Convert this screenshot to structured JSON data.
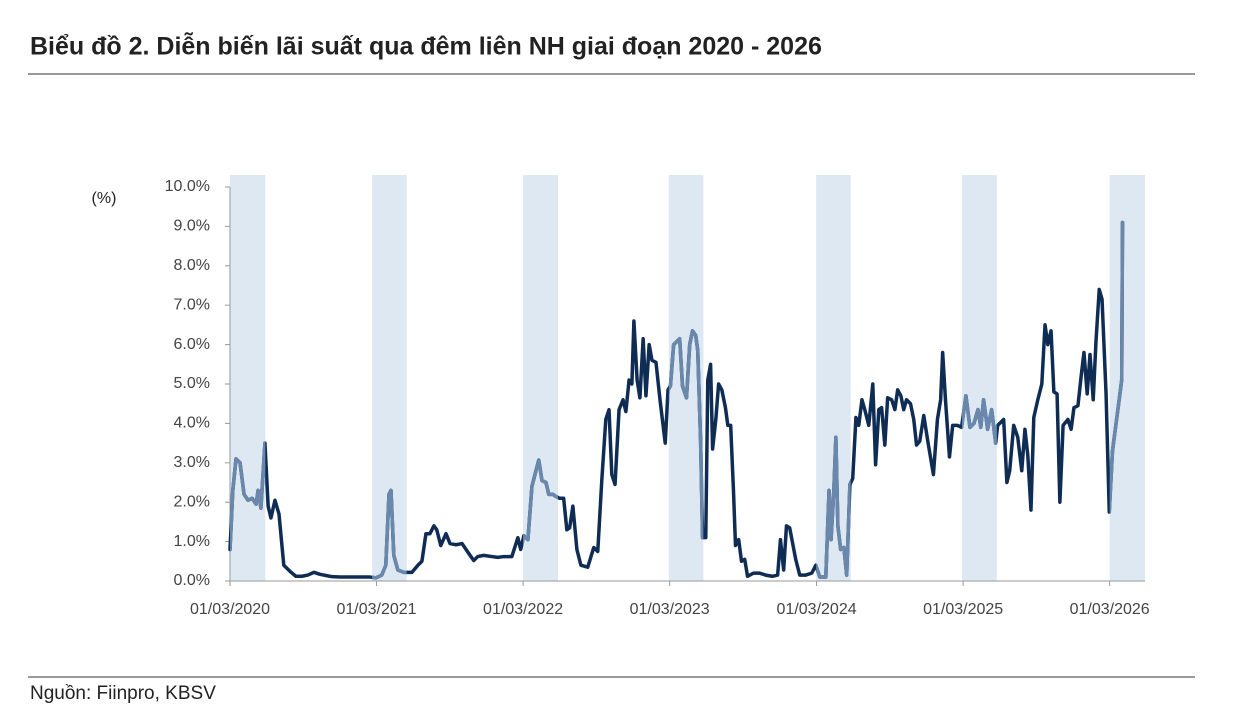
{
  "chart_data": {
    "type": "line",
    "title": "Biểu đồ 2. Diễn biến lãi suất qua đêm liên NH giai đoạn 2020 - 2026",
    "y_label": "(%)",
    "source": "Nguồn: Fiinpro, KBSV",
    "color": "#0f2c55",
    "highlight_color": "#6a88ab",
    "band_color": "#dde8f3",
    "xlim": [
      "2020-03-01",
      "2026-05-28"
    ],
    "xticks": [
      {
        "value": "2020-03-01",
        "label": "01/03/2020"
      },
      {
        "value": "2021-03-01",
        "label": "01/03/2021"
      },
      {
        "value": "2022-03-01",
        "label": "01/03/2022"
      },
      {
        "value": "2023-03-01",
        "label": "01/03/2023"
      },
      {
        "value": "2024-03-01",
        "label": "01/03/2024"
      },
      {
        "value": "2025-03-01",
        "label": "01/03/2025"
      },
      {
        "value": "2026-03-01",
        "label": "01/03/2026"
      }
    ],
    "ylim": [
      0,
      10
    ],
    "yticks": [
      {
        "value": 0,
        "label": "0.0%"
      },
      {
        "value": 1,
        "label": "1.0%"
      },
      {
        "value": 2,
        "label": "2.0%"
      },
      {
        "value": 3,
        "label": "3.0%"
      },
      {
        "value": 4,
        "label": "4.0%"
      },
      {
        "value": 5,
        "label": "5.0%"
      },
      {
        "value": 6,
        "label": "6.0%"
      },
      {
        "value": 7,
        "label": "7.0%"
      },
      {
        "value": 8,
        "label": "8.0%"
      },
      {
        "value": 9,
        "label": "9.0%"
      },
      {
        "value": 10,
        "label": "10.0%"
      }
    ],
    "shaded_periods": [
      {
        "start": "2020-03-01",
        "end": "2020-05-28"
      },
      {
        "start": "2021-02-18",
        "end": "2021-05-15"
      },
      {
        "start": "2022-03-01",
        "end": "2022-05-27"
      },
      {
        "start": "2023-02-27",
        "end": "2023-05-24"
      },
      {
        "start": "2024-02-29",
        "end": "2024-05-25"
      },
      {
        "start": "2025-02-26",
        "end": "2025-05-24"
      },
      {
        "start": "2026-03-01",
        "end": "2026-05-28"
      }
    ],
    "x": [
      "2020-03-01",
      "2020-03-08",
      "2020-03-16",
      "2020-03-26",
      "2020-04-05",
      "2020-04-15",
      "2020-04-25",
      "2020-05-05",
      "2020-05-10",
      "2020-05-17",
      "2020-05-27",
      "2020-06-04",
      "2020-06-11",
      "2020-06-21",
      "2020-07-01",
      "2020-07-13",
      "2020-07-28",
      "2020-08-12",
      "2020-08-27",
      "2020-09-11",
      "2020-09-26",
      "2020-10-11",
      "2020-10-26",
      "2020-11-10",
      "2020-11-30",
      "2020-12-25",
      "2021-01-19",
      "2021-02-13",
      "2021-02-28",
      "2021-03-14",
      "2021-03-24",
      "2021-04-01",
      "2021-04-06",
      "2021-04-13",
      "2021-04-23",
      "2021-05-08",
      "2021-05-28",
      "2021-06-12",
      "2021-06-22",
      "2021-07-02",
      "2021-07-12",
      "2021-07-22",
      "2021-07-29",
      "2021-08-08",
      "2021-08-21",
      "2021-08-31",
      "2021-09-15",
      "2021-09-30",
      "2021-10-10",
      "2021-10-20",
      "2021-10-29",
      "2021-11-08",
      "2021-11-23",
      "2021-12-13",
      "2021-12-28",
      "2022-01-12",
      "2022-02-01",
      "2022-02-16",
      "2022-02-23",
      "2022-03-03",
      "2022-03-13",
      "2022-03-23",
      "2022-04-02",
      "2022-04-09",
      "2022-04-17",
      "2022-04-27",
      "2022-05-04",
      "2022-05-14",
      "2022-05-21",
      "2022-05-31",
      "2022-06-10",
      "2022-06-18",
      "2022-06-25",
      "2022-07-03",
      "2022-07-13",
      "2022-07-23",
      "2022-08-09",
      "2022-08-24",
      "2022-09-03",
      "2022-09-13",
      "2022-09-23",
      "2022-10-01",
      "2022-10-08",
      "2022-10-16",
      "2022-10-26",
      "2022-11-05",
      "2022-11-12",
      "2022-11-20",
      "2022-11-27",
      "2022-12-02",
      "2022-12-10",
      "2022-12-17",
      "2022-12-25",
      "2023-01-01",
      "2023-01-09",
      "2023-01-16",
      "2023-01-26",
      "2023-02-05",
      "2023-02-18",
      "2023-02-25",
      "2023-03-03",
      "2023-03-11",
      "2023-03-18",
      "2023-03-26",
      "2023-04-02",
      "2023-04-12",
      "2023-04-20",
      "2023-04-27",
      "2023-05-05",
      "2023-05-10",
      "2023-05-17",
      "2023-05-22",
      "2023-05-30",
      "2023-06-04",
      "2023-06-11",
      "2023-06-16",
      "2023-06-24",
      "2023-07-01",
      "2023-07-09",
      "2023-07-18",
      "2023-07-24",
      "2023-07-31",
      "2023-08-07",
      "2023-08-12",
      "2023-08-20",
      "2023-08-27",
      "2023-09-04",
      "2023-09-11",
      "2023-09-26",
      "2023-10-11",
      "2023-10-26",
      "2023-11-12",
      "2023-11-25",
      "2023-12-02",
      "2023-12-10",
      "2023-12-17",
      "2023-12-25",
      "2024-01-09",
      "2024-01-19",
      "2024-02-03",
      "2024-02-18",
      "2024-02-28",
      "2024-03-09",
      "2024-03-24",
      "2024-04-01",
      "2024-04-06",
      "2024-04-13",
      "2024-04-18",
      "2024-04-23",
      "2024-04-30",
      "2024-05-08",
      "2024-05-15",
      "2024-05-23",
      "2024-05-30",
      "2024-06-07",
      "2024-06-14",
      "2024-06-22",
      "2024-06-29",
      "2024-07-09",
      "2024-07-19",
      "2024-07-26",
      "2024-08-03",
      "2024-08-10",
      "2024-08-18",
      "2024-08-25",
      "2024-09-04",
      "2024-09-12",
      "2024-09-19",
      "2024-09-27",
      "2024-10-04",
      "2024-10-11",
      "2024-10-21",
      "2024-10-29",
      "2024-11-05",
      "2024-11-13",
      "2024-11-23",
      "2024-12-03",
      "2024-12-17",
      "2024-12-27",
      "2025-01-04",
      "2025-01-09",
      "2025-01-16",
      "2025-01-26",
      "2025-02-03",
      "2025-02-15",
      "2025-02-25",
      "2025-03-08",
      "2025-03-18",
      "2025-03-28",
      "2025-04-07",
      "2025-04-14",
      "2025-04-21",
      "2025-05-01",
      "2025-05-11",
      "2025-05-21",
      "2025-05-26",
      "2025-06-10",
      "2025-06-18",
      "2025-06-25",
      "2025-07-05",
      "2025-07-15",
      "2025-07-25",
      "2025-08-02",
      "2025-08-09",
      "2025-08-17",
      "2025-08-24",
      "2025-09-03",
      "2025-09-13",
      "2025-09-21",
      "2025-09-28",
      "2025-10-06",
      "2025-10-13",
      "2025-10-21",
      "2025-10-28",
      "2025-11-05",
      "2025-11-17",
      "2025-11-25",
      "2025-12-02",
      "2025-12-12",
      "2025-12-20",
      "2025-12-27",
      "2026-01-04",
      "2026-01-11",
      "2026-01-19",
      "2026-01-26",
      "2026-02-03",
      "2026-02-10",
      "2026-02-20",
      "2026-02-28",
      "2026-03-08",
      "2026-03-31",
      "2026-04-02"
    ],
    "values": [
      0.8,
      2.3,
      3.1,
      3.0,
      2.2,
      2.05,
      2.1,
      1.95,
      2.3,
      1.85,
      3.5,
      1.9,
      1.6,
      2.05,
      1.7,
      0.4,
      0.25,
      0.12,
      0.12,
      0.15,
      0.22,
      0.17,
      0.14,
      0.11,
      0.1,
      0.1,
      0.1,
      0.1,
      0.08,
      0.15,
      0.4,
      2.2,
      2.3,
      0.65,
      0.28,
      0.22,
      0.22,
      0.4,
      0.5,
      1.2,
      1.2,
      1.4,
      1.3,
      0.9,
      1.2,
      0.95,
      0.92,
      0.95,
      0.8,
      0.65,
      0.52,
      0.62,
      0.65,
      0.62,
      0.6,
      0.62,
      0.62,
      1.1,
      0.8,
      1.15,
      1.05,
      2.4,
      2.8,
      3.07,
      2.55,
      2.5,
      2.2,
      2.2,
      2.15,
      2.1,
      2.1,
      1.3,
      1.35,
      1.9,
      0.8,
      0.4,
      0.35,
      0.85,
      0.75,
      2.55,
      4.1,
      4.35,
      2.7,
      2.45,
      4.35,
      4.6,
      4.3,
      5.1,
      5.0,
      6.6,
      5.1,
      4.65,
      6.15,
      4.7,
      6.0,
      5.6,
      5.55,
      4.6,
      3.5,
      4.85,
      4.95,
      6.0,
      6.07,
      6.15,
      4.95,
      4.65,
      6.0,
      6.35,
      6.23,
      5.85,
      3.6,
      1.1,
      1.1,
      5.1,
      5.5,
      3.35,
      4.1,
      5.0,
      4.85,
      4.4,
      3.95,
      3.95,
      2.3,
      0.9,
      1.05,
      0.5,
      0.55,
      0.12,
      0.2,
      0.2,
      0.15,
      0.12,
      0.15,
      1.05,
      0.28,
      1.4,
      1.35,
      0.55,
      0.15,
      0.15,
      0.2,
      0.4,
      0.1,
      0.1,
      2.3,
      1.05,
      2.3,
      3.65,
      1.4,
      0.8,
      0.85,
      0.15,
      2.45,
      2.6,
      4.15,
      3.95,
      4.6,
      4.35,
      3.95,
      5.0,
      2.95,
      4.35,
      4.4,
      3.45,
      4.65,
      4.6,
      4.35,
      4.85,
      4.7,
      4.35,
      4.6,
      4.5,
      4.1,
      3.45,
      3.55,
      4.2,
      3.55,
      2.7,
      4.1,
      4.6,
      5.8,
      4.6,
      3.15,
      3.95,
      3.95,
      3.9,
      4.7,
      3.9,
      4.0,
      4.35,
      3.9,
      4.6,
      3.85,
      4.35,
      3.5,
      3.95,
      4.1,
      2.5,
      2.8,
      3.95,
      3.65,
      2.8,
      3.85,
      3.2,
      1.8,
      4.15,
      4.6,
      5.0,
      6.5,
      6.0,
      6.35,
      4.8,
      4.75,
      2.0,
      3.95,
      4.1,
      3.85,
      4.4,
      4.45,
      5.2,
      5.8,
      4.75,
      5.75,
      4.6,
      6.1,
      7.4,
      7.15,
      4.75,
      1.75,
      3.3,
      5.1,
      9.1
    ]
  }
}
